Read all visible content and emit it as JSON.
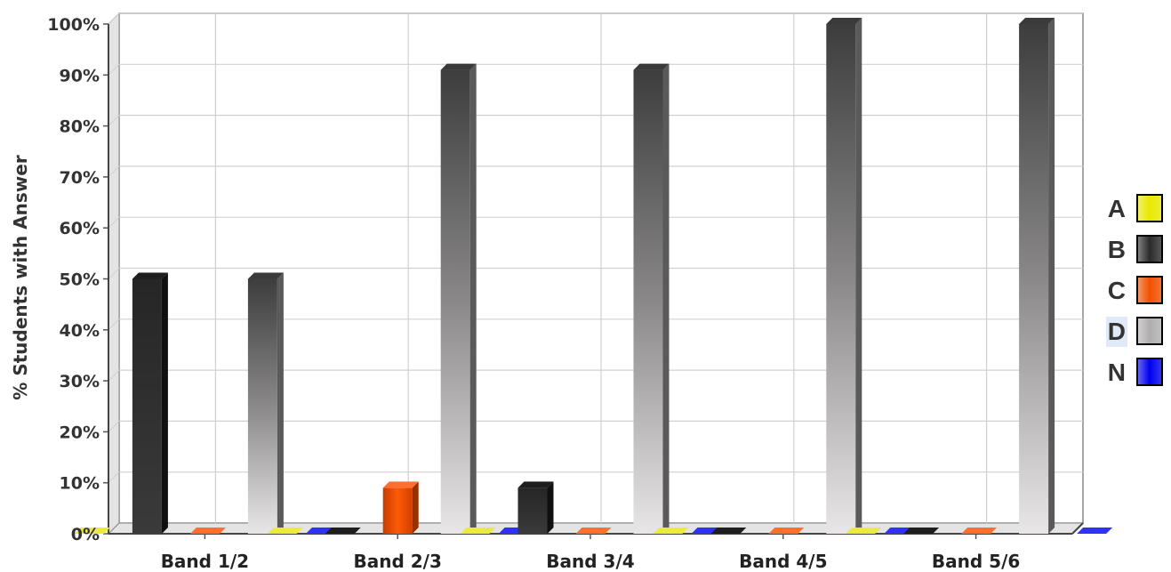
{
  "chart_data": {
    "type": "bar",
    "title": "",
    "xlabel": "",
    "ylabel": "% Students with Answer",
    "ylim": [
      0,
      100
    ],
    "y_ticks": [
      "0%",
      "10%",
      "20%",
      "30%",
      "40%",
      "50%",
      "60%",
      "70%",
      "80%",
      "90%",
      "100%"
    ],
    "grid": true,
    "legend_position": "right",
    "categories": [
      "Band 1/2",
      "Band 2/3",
      "Band 3/4",
      "Band 4/5",
      "Band 5/6"
    ],
    "series": [
      {
        "name": "A",
        "values": [
          0,
          0,
          0,
          0,
          0
        ]
      },
      {
        "name": "B",
        "values": [
          50,
          0,
          9,
          0,
          0
        ]
      },
      {
        "name": "C",
        "values": [
          0,
          9,
          0,
          0,
          0
        ]
      },
      {
        "name": "D",
        "values": [
          50,
          91,
          91,
          100,
          100
        ]
      },
      {
        "name": "N",
        "values": [
          0,
          0,
          0,
          0,
          0
        ]
      }
    ]
  },
  "legend": [
    {
      "label": "A",
      "color": "#e8e800",
      "selected": false
    },
    {
      "label": "B",
      "color": "#2b2b2b",
      "selected": false
    },
    {
      "label": "C",
      "color": "#f05000",
      "selected": false
    },
    {
      "label": "D",
      "color": "#b0aeae",
      "selected": true
    },
    {
      "label": "N",
      "color": "#0000ee",
      "selected": false
    }
  ]
}
